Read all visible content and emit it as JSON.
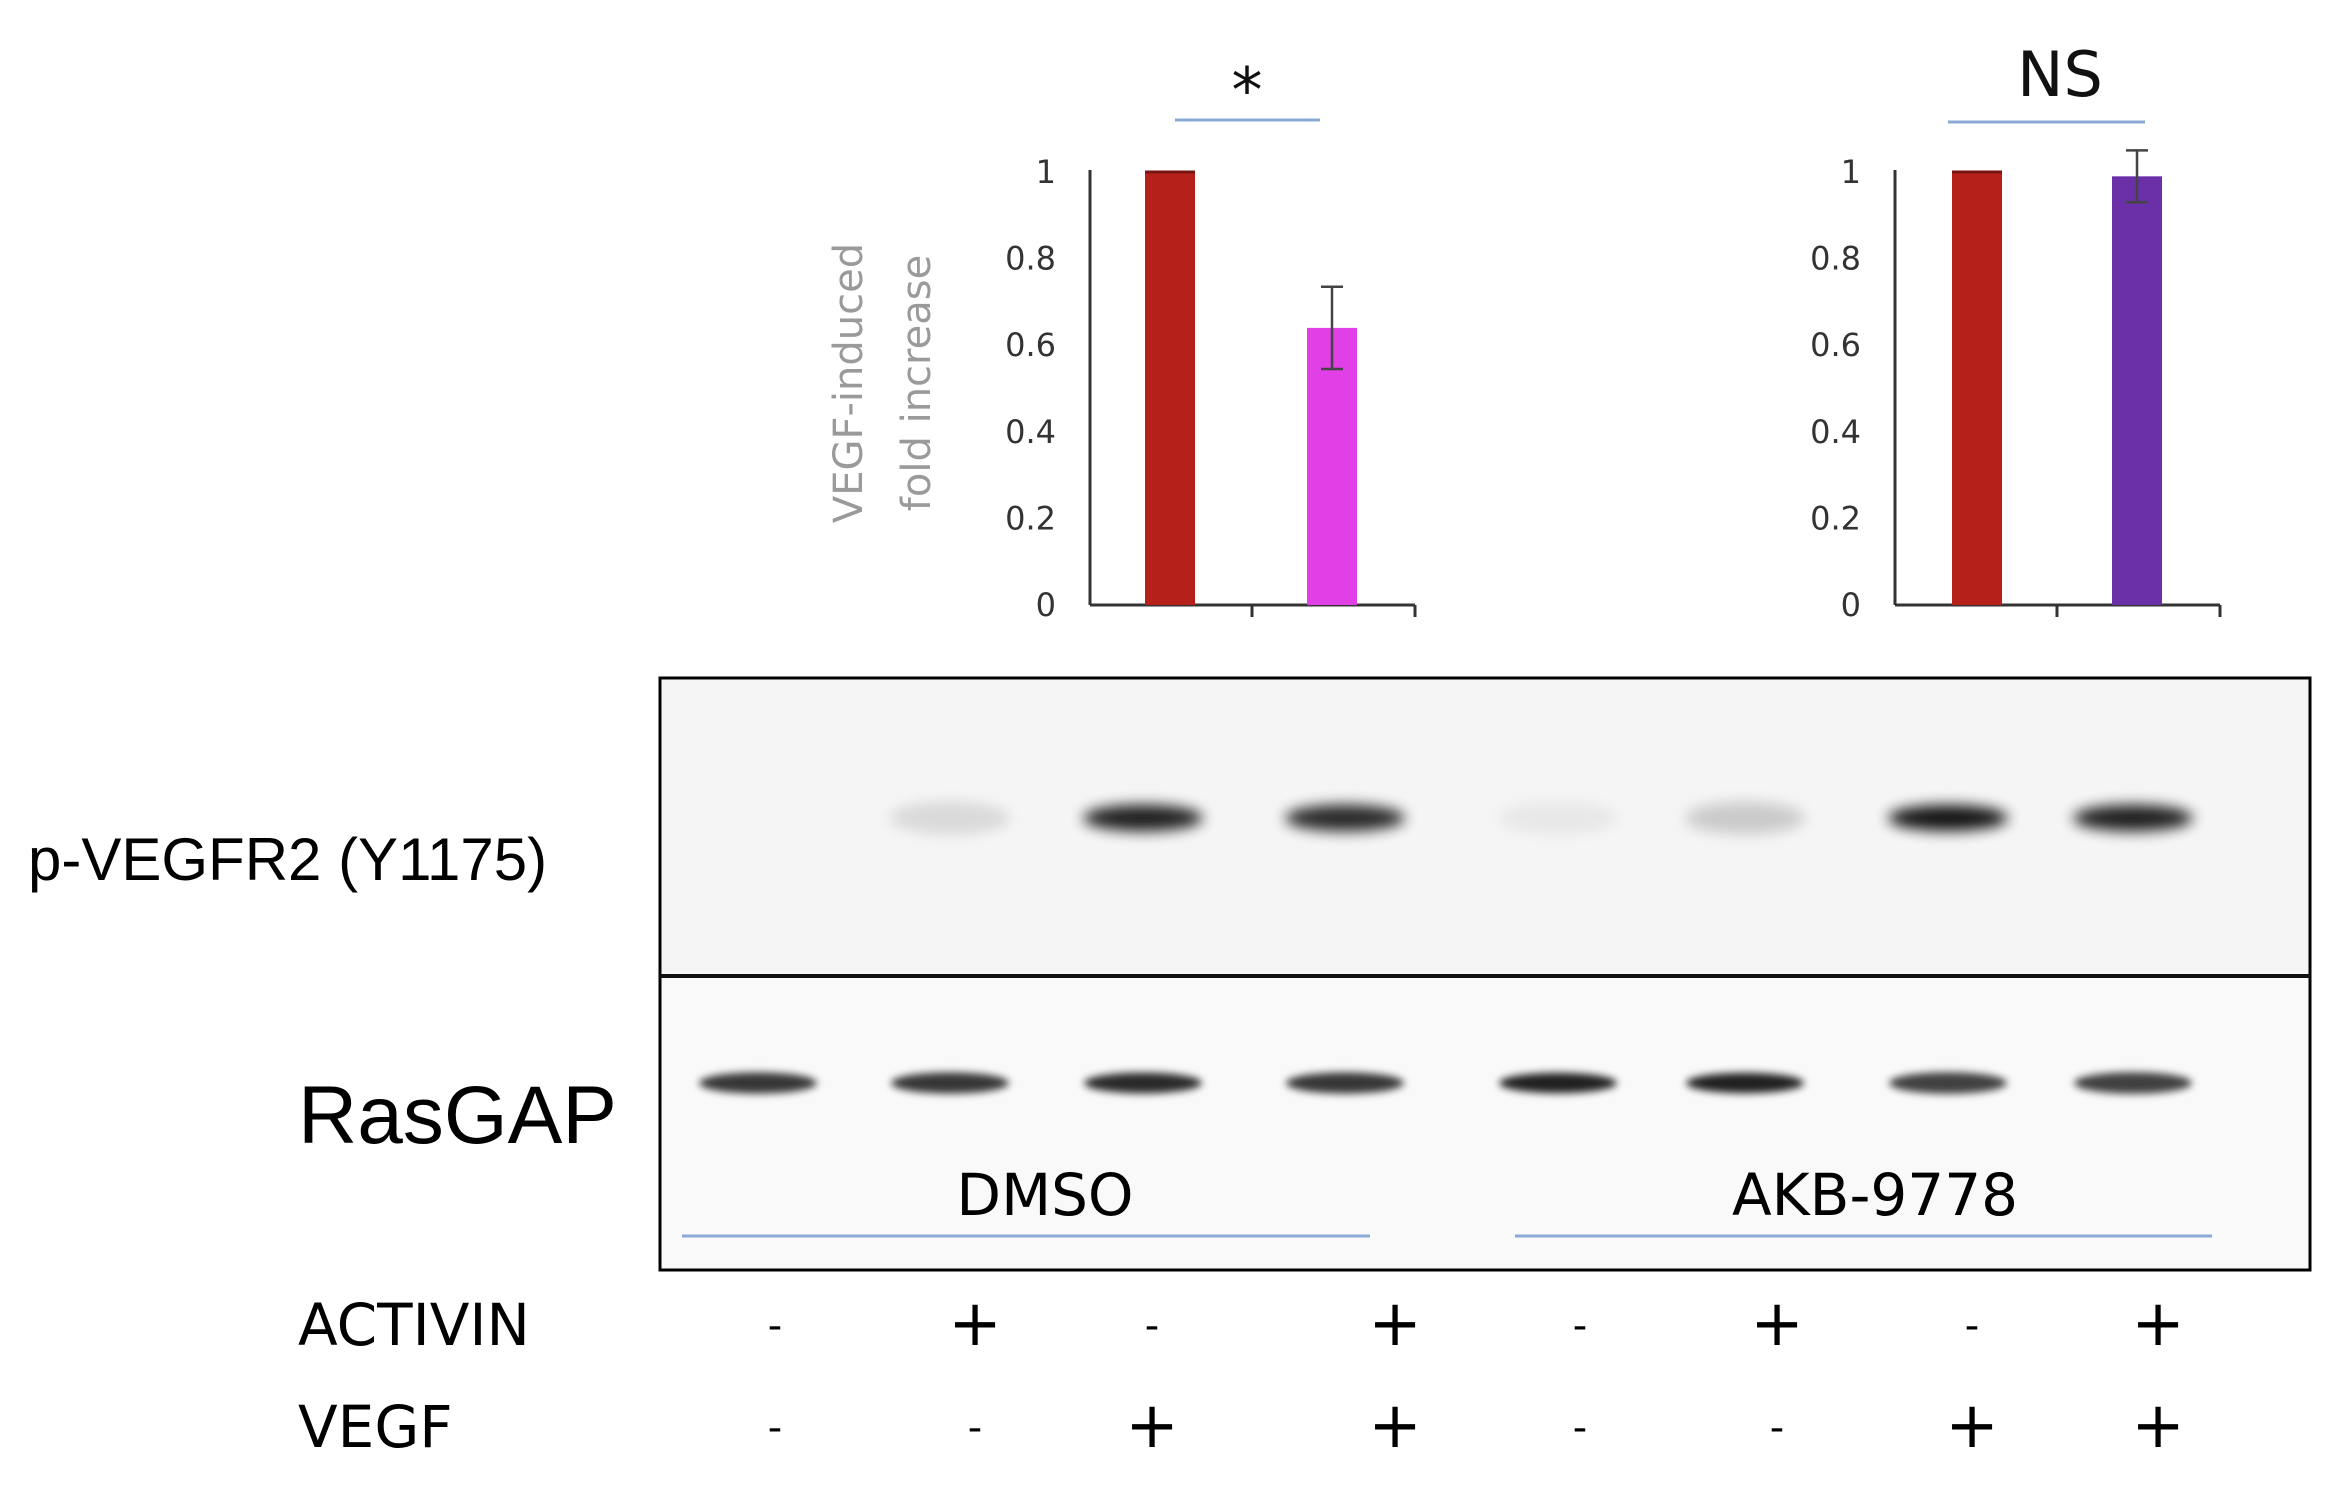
{
  "chart_data": [
    {
      "type": "bar",
      "ylabel_lines": [
        "VEGF-induced",
        "fold increase"
      ],
      "ylim": [
        0,
        1
      ],
      "yticks": [
        "0",
        "0.2",
        "0.4",
        "0.6",
        "0.8",
        "1"
      ],
      "significance": "*",
      "values": [
        1.0,
        0.64
      ],
      "errors": [
        0.0,
        0.095
      ],
      "colors": [
        "#b5201a",
        "#e040e6"
      ]
    },
    {
      "type": "bar",
      "ylim": [
        0,
        1
      ],
      "yticks": [
        "0",
        "0.2",
        "0.4",
        "0.6",
        "0.8",
        "1"
      ],
      "significance": "NS",
      "values": [
        1.0,
        0.99
      ],
      "errors": [
        0.0,
        0.06
      ],
      "colors": [
        "#b5201a",
        "#6b30a8"
      ]
    }
  ],
  "blot": {
    "row_labels": [
      "p-VEGFR2 (Y1175)",
      "RasGAP"
    ],
    "group_labels": [
      "DMSO",
      "AKB-9778"
    ],
    "top_band_intensity": [
      0.0,
      0.12,
      0.95,
      0.9,
      0.05,
      0.18,
      1.0,
      0.95
    ],
    "bottom_band_intensity": [
      0.85,
      0.85,
      0.9,
      0.85,
      0.95,
      0.95,
      0.8,
      0.8
    ]
  },
  "conditions": [
    {
      "name": "ACTIVIN",
      "values": [
        "-",
        "+",
        "-",
        "+",
        "-",
        "+",
        "-",
        "+"
      ]
    },
    {
      "name": "VEGF",
      "values": [
        "-",
        "-",
        "+",
        "+",
        "-",
        "-",
        "+",
        "+"
      ]
    }
  ]
}
